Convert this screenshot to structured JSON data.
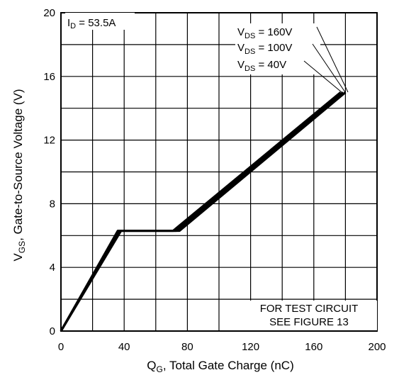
{
  "chart_data": {
    "type": "line",
    "title": "",
    "xlabel": {
      "main": "Q",
      "sub": "G",
      "rest": ", Total Gate Charge (nC)"
    },
    "ylabel": {
      "main": "V",
      "sub": "GS",
      "rest": ", Gate-to-Source Voltage (V)"
    },
    "xlim": [
      0,
      200
    ],
    "ylim": [
      0,
      20
    ],
    "xticks": [
      0,
      40,
      80,
      120,
      160,
      200
    ],
    "yticks": [
      0,
      4,
      8,
      12,
      16,
      20
    ],
    "x_grid_step": 20,
    "y_grid_step": 2,
    "grid": true,
    "id_annotation": {
      "main": "I",
      "sub": "D",
      "rest": " = 53.5A"
    },
    "series": [
      {
        "name": {
          "main": "V",
          "sub": "DS",
          "rest": " = 160V"
        },
        "points": [
          [
            0,
            0
          ],
          [
            38,
            6.3
          ],
          [
            75,
            6.3
          ],
          [
            180,
            15.0
          ]
        ]
      },
      {
        "name": {
          "main": "V",
          "sub": "DS",
          "rest": " = 100V"
        },
        "points": [
          [
            0,
            0
          ],
          [
            37,
            6.3
          ],
          [
            73,
            6.3
          ],
          [
            178.5,
            15.0
          ]
        ]
      },
      {
        "name": {
          "main": "V",
          "sub": "DS",
          "rest": " = 40V"
        },
        "points": [
          [
            0,
            0
          ],
          [
            36,
            6.3
          ],
          [
            71,
            6.3
          ],
          [
            177,
            15.0
          ]
        ]
      }
    ],
    "note": [
      "FOR TEST CIRCUIT",
      "SEE FIGURE 13"
    ]
  }
}
